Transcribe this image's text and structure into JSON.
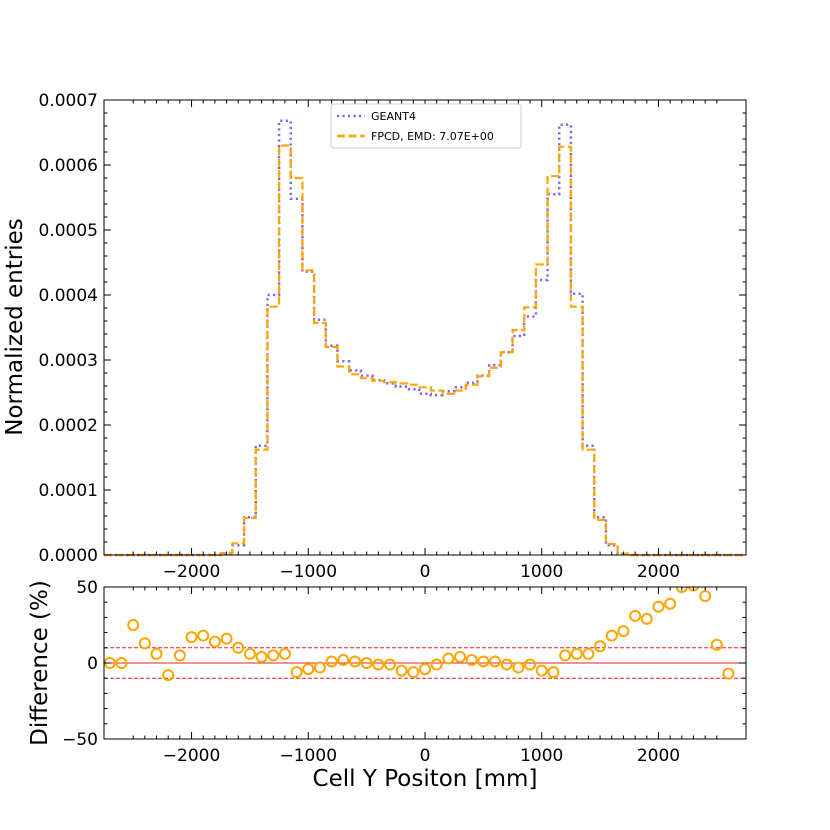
{
  "chart_data": {
    "type": "step-histogram-with-ratio",
    "colors": {
      "geant": "#7b68ee",
      "fpcd": "#ffa500",
      "ref": "#e82020",
      "frame": "#000000"
    },
    "main": {
      "ylabel": "Normalized entries",
      "xlim": [
        -2750,
        2750
      ],
      "ylim": [
        0,
        0.0007
      ],
      "ytick_values": [
        0,
        0.0001,
        0.0002,
        0.0003,
        0.0004,
        0.0005,
        0.0006,
        0.0007
      ],
      "ytick_labels": [
        "0.0000",
        "0.0001",
        "0.0002",
        "0.0003",
        "0.0004",
        "0.0005",
        "0.0006",
        "0.0007"
      ],
      "xtick_values": [
        -2000,
        -1000,
        0,
        1000,
        2000
      ],
      "xtick_labels": [
        "−2000",
        "−1000",
        "0",
        "1000",
        "2000"
      ],
      "bin_edges": [
        -2750,
        -2650,
        -2550,
        -2450,
        -2350,
        -2250,
        -2150,
        -2050,
        -1950,
        -1850,
        -1750,
        -1650,
        -1550,
        -1450,
        -1350,
        -1250,
        -1150,
        -1050,
        -950,
        -850,
        -750,
        -650,
        -550,
        -450,
        -350,
        -250,
        -150,
        -50,
        50,
        150,
        250,
        350,
        450,
        550,
        650,
        750,
        850,
        950,
        1050,
        1150,
        1250,
        1350,
        1450,
        1550,
        1650,
        1750,
        1850,
        1950,
        2050,
        2150,
        2250,
        2350,
        2450,
        2550,
        2650,
        2750
      ],
      "legend_position": "upper-center",
      "series": [
        {
          "name": "GEANT4",
          "style": "dotted",
          "values": [
            0,
            0,
            0,
            0,
            0,
            0,
            0,
            0,
            0,
            0,
            2e-06,
            1.5e-05,
            5.8e-05,
            0.000168,
            0.0004,
            0.000668,
            0.000548,
            0.000436,
            0.000362,
            0.000322,
            0.000298,
            0.000284,
            0.000276,
            0.000269,
            0.000264,
            0.000259,
            0.000255,
            0.000248,
            0.000246,
            0.000252,
            0.000258,
            0.000265,
            0.000276,
            0.000292,
            0.000312,
            0.000337,
            0.000367,
            0.000423,
            0.000555,
            0.000662,
            0.000402,
            0.000168,
            5.8e-05,
            1.5e-05,
            2e-06,
            0,
            0,
            0,
            0,
            0,
            0,
            0,
            0,
            0,
            0
          ]
        },
        {
          "name": "FPCD, EMD: 7.07E+00",
          "style": "dashed",
          "values": [
            0,
            0,
            0,
            0,
            0,
            0,
            0,
            0,
            0,
            0,
            3e-06,
            1.8e-05,
            5.7e-05,
            0.000162,
            0.000382,
            0.00063,
            0.00058,
            0.000438,
            0.000357,
            0.00032,
            0.00029,
            0.000278,
            0.000272,
            0.000268,
            0.000266,
            0.000264,
            0.000262,
            0.000258,
            0.000253,
            0.000248,
            0.000253,
            0.000262,
            0.000275,
            0.000288,
            0.000312,
            0.000346,
            0.000381,
            0.000447,
            0.000583,
            0.000628,
            0.000382,
            0.000162,
            5.4e-05,
            1.7e-05,
            2e-06,
            0,
            0,
            0,
            0,
            0,
            0,
            0,
            0,
            0,
            0
          ]
        }
      ]
    },
    "ratio": {
      "ylabel": "Difference (%)",
      "xlabel": "Cell Y Positon [mm]",
      "ylim": [
        -50,
        50
      ],
      "ytick_values": [
        -50,
        0,
        50
      ],
      "ytick_labels": [
        "−50",
        "0",
        "50"
      ],
      "reference_lines": [
        0,
        10,
        -10
      ],
      "points": {
        "x": [
          -2700,
          -2600,
          -2500,
          -2400,
          -2300,
          -2200,
          -2100,
          -2000,
          -1900,
          -1800,
          -1700,
          -1600,
          -1500,
          -1400,
          -1300,
          -1200,
          -1100,
          -1000,
          -900,
          -800,
          -700,
          -600,
          -500,
          -400,
          -300,
          -200,
          -100,
          0,
          100,
          200,
          300,
          400,
          500,
          600,
          700,
          800,
          900,
          1000,
          1100,
          1200,
          1300,
          1400,
          1500,
          1600,
          1700,
          1800,
          1900,
          2000,
          2100,
          2200,
          2300,
          2400,
          2500,
          2600
        ],
        "y": [
          0,
          0,
          25,
          13,
          6,
          -8,
          5,
          17,
          18,
          14,
          16,
          10,
          6,
          4,
          5,
          6,
          -6,
          -4,
          -3,
          1,
          2,
          1,
          0,
          -1,
          -1,
          -5,
          -6,
          -4,
          -1,
          3,
          4,
          2,
          1,
          1,
          -1,
          -3,
          -1,
          -5,
          -6,
          5,
          6,
          6,
          11,
          18,
          21,
          31,
          29,
          37,
          39,
          50,
          51,
          44,
          12,
          -7
        ]
      }
    }
  }
}
